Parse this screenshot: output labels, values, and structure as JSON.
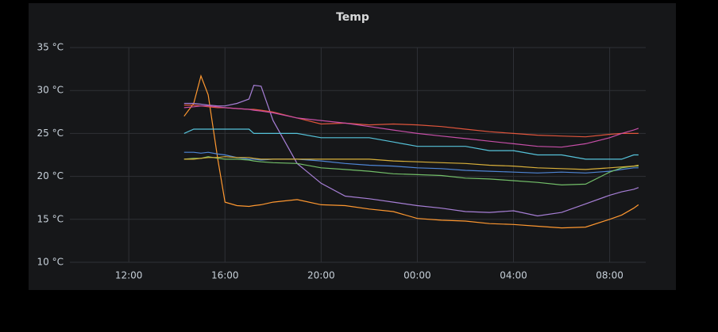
{
  "chart_data": {
    "type": "line",
    "title": "Temp",
    "x": [
      14.3,
      14.7,
      15.0,
      15.3,
      15.7,
      16.0,
      16.5,
      17.0,
      17.2,
      17.5,
      18,
      19,
      20,
      21,
      22,
      23,
      24,
      25,
      26,
      27,
      28,
      29,
      30,
      31,
      32,
      32.5,
      33,
      33.2
    ],
    "xlim": [
      9.55,
      33.5
    ],
    "xticks": [
      {
        "value": 12,
        "label": "12:00"
      },
      {
        "value": 16,
        "label": "16:00"
      },
      {
        "value": 20,
        "label": "20:00"
      },
      {
        "value": 24,
        "label": "00:00"
      },
      {
        "value": 28,
        "label": "04:00"
      },
      {
        "value": 32,
        "label": "08:00"
      }
    ],
    "ylim": [
      10,
      35
    ],
    "yticks": [
      {
        "value": 10,
        "label": "10 °C"
      },
      {
        "value": 15,
        "label": "15 °C"
      },
      {
        "value": 20,
        "label": "20 °C"
      },
      {
        "value": 25,
        "label": "25 °C"
      },
      {
        "value": 30,
        "label": "30 °C"
      },
      {
        "value": 35,
        "label": "35 °C"
      }
    ],
    "grid": true,
    "series": [
      {
        "color": "#ff9830",
        "values": [
          27,
          28.5,
          31.7,
          29.5,
          22,
          17,
          16.6,
          16.5,
          16.6,
          16.7,
          17,
          17.3,
          16.7,
          16.6,
          16.2,
          15.9,
          15.1,
          14.9,
          14.8,
          14.5,
          14.4,
          14.2,
          14.0,
          14.1,
          15,
          15.5,
          16.3,
          16.7
        ]
      },
      {
        "color": "#a77fd6",
        "values": [
          28.5,
          28.5,
          28.4,
          28.3,
          28.2,
          28.2,
          28.5,
          29,
          30.6,
          30.5,
          26.5,
          21.5,
          19.2,
          17.7,
          17.4,
          17,
          16.6,
          16.3,
          15.9,
          15.8,
          16,
          15.4,
          15.8,
          16.8,
          17.8,
          18.2,
          18.5,
          18.7
        ]
      },
      {
        "color": "#e0553c",
        "values": [
          28.3,
          28.3,
          28.2,
          28.1,
          28.0,
          28.0,
          27.9,
          27.8,
          27.8,
          27.7,
          27.5,
          26.8,
          26.1,
          26.2,
          26,
          26.1,
          26,
          25.8,
          25.5,
          25.2,
          25,
          24.8,
          24.7,
          24.6,
          24.9,
          25,
          25,
          25
        ]
      },
      {
        "color": "#c74fa8",
        "values": [
          28,
          28.1,
          28.2,
          28.2,
          28.1,
          28.0,
          27.9,
          27.8,
          27.7,
          27.6,
          27.4,
          26.8,
          26.5,
          26.2,
          25.8,
          25.4,
          25,
          24.7,
          24.4,
          24.1,
          23.8,
          23.5,
          23.4,
          23.8,
          24.5,
          25,
          25.4,
          25.6
        ]
      },
      {
        "color": "#56c3da",
        "values": [
          25,
          25.5,
          25.5,
          25.5,
          25.5,
          25.5,
          25.5,
          25.5,
          25,
          25,
          25,
          25,
          24.5,
          24.5,
          24.5,
          24,
          23.5,
          23.5,
          23.5,
          23,
          23,
          22.5,
          22.5,
          22,
          22,
          22,
          22.5,
          22.5
        ]
      },
      {
        "color": "#4f86d6",
        "values": [
          22.8,
          22.8,
          22.7,
          22.8,
          22.6,
          22.5,
          22.2,
          22,
          22,
          21.9,
          22,
          22,
          21.8,
          21.5,
          21.3,
          21.2,
          21,
          20.9,
          20.7,
          20.6,
          20.5,
          20.4,
          20.5,
          20.4,
          20.6,
          20.8,
          21,
          21
        ]
      },
      {
        "color": "#73bf69",
        "values": [
          22,
          22.1,
          22.1,
          22.3,
          22.1,
          22,
          22,
          21.9,
          21.8,
          21.7,
          21.6,
          21.5,
          21,
          20.8,
          20.6,
          20.3,
          20.2,
          20.1,
          19.8,
          19.7,
          19.5,
          19.3,
          19,
          19.1,
          20.5,
          21,
          21.2,
          21.2
        ]
      },
      {
        "color": "#d9b03a",
        "values": [
          22,
          22,
          22.1,
          22.2,
          22.2,
          22.3,
          22.2,
          22.2,
          22.1,
          22,
          22,
          22,
          22,
          22,
          22,
          21.8,
          21.7,
          21.6,
          21.5,
          21.3,
          21.2,
          21,
          20.9,
          20.8,
          21,
          21.1,
          21.2,
          21.3
        ]
      }
    ]
  }
}
